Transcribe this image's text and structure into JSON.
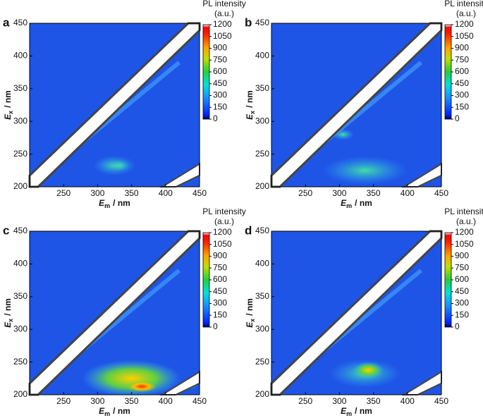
{
  "chart_data": [
    {
      "type": "contour",
      "panel": "a",
      "xlabel": {
        "symbol": "E",
        "subscript": "m",
        "unit": "/ nm"
      },
      "ylabel": {
        "symbol": "E",
        "subscript": "x",
        "unit": "/ nm"
      },
      "xlim": [
        200,
        450
      ],
      "xticks": [
        250,
        300,
        350,
        400,
        450
      ],
      "ylim": [
        200,
        450
      ],
      "yticks": [
        200,
        250,
        300,
        350,
        400,
        450
      ],
      "colorbar": {
        "title": "PL intensity",
        "unit": "(a.u.)",
        "lim": [
          0,
          1200
        ],
        "ticks": [
          0,
          150,
          300,
          450,
          600,
          750,
          900,
          1050,
          1200
        ]
      }
    },
    {
      "type": "contour",
      "panel": "b",
      "xlabel": {
        "symbol": "E",
        "subscript": "m",
        "unit": "/ nm"
      },
      "ylabel": {
        "symbol": "E",
        "subscript": "x",
        "unit": "/ nm"
      },
      "xlim": [
        200,
        450
      ],
      "xticks": [
        250,
        300,
        350,
        400,
        450
      ],
      "ylim": [
        200,
        450
      ],
      "yticks": [
        200,
        250,
        300,
        350,
        400,
        450
      ],
      "colorbar": {
        "title": "PL intensity",
        "unit": "(a.u.)",
        "lim": [
          0,
          1200
        ],
        "ticks": [
          0,
          150,
          300,
          450,
          600,
          750,
          900,
          1050,
          1200
        ]
      }
    },
    {
      "type": "contour",
      "panel": "c",
      "xlabel": {
        "symbol": "E",
        "subscript": "m",
        "unit": "/ nm"
      },
      "ylabel": {
        "symbol": "E",
        "subscript": "x",
        "unit": "/ nm"
      },
      "xlim": [
        200,
        450
      ],
      "xticks": [
        250,
        300,
        350,
        400,
        450
      ],
      "ylim": [
        200,
        450
      ],
      "yticks": [
        200,
        250,
        300,
        350,
        400,
        450
      ],
      "colorbar": {
        "title": "PL intensity",
        "unit": "(a.u.)",
        "lim": [
          0,
          1200
        ],
        "ticks": [
          0,
          150,
          300,
          450,
          600,
          750,
          900,
          1050,
          1200
        ]
      }
    },
    {
      "type": "contour",
      "panel": "d",
      "xlabel": {
        "symbol": "E",
        "subscript": "m",
        "unit": "/ nm"
      },
      "ylabel": {
        "symbol": "E",
        "subscript": "x",
        "unit": "/ nm"
      },
      "xlim": [
        200,
        450
      ],
      "xticks": [
        250,
        300,
        350,
        400,
        450
      ],
      "ylim": [
        200,
        450
      ],
      "yticks": [
        200,
        250,
        300,
        350,
        400,
        450
      ],
      "colorbar": {
        "title": "PL intensity",
        "unit": "(a.u.)",
        "lim": [
          0,
          1200
        ],
        "ticks": [
          0,
          150,
          300,
          450,
          600,
          750,
          900,
          1050,
          1200
        ]
      }
    }
  ]
}
